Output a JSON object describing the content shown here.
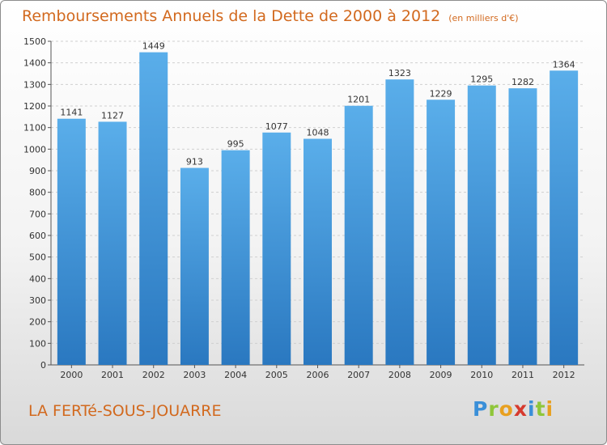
{
  "title": "Remboursements Annuels de la Dette de 2000 à 2012",
  "unit": "(en milliers d'€)",
  "place": "LA FERTé-SOUS-JOUARRE",
  "logo": {
    "letters": [
      {
        "char": "P",
        "color": "#3a8fd8"
      },
      {
        "char": "r",
        "color": "#8fc63a"
      },
      {
        "char": "o",
        "color": "#e8a020"
      },
      {
        "char": "x",
        "color": "#d63a2e"
      },
      {
        "char": "i",
        "color": "#3a8fd8"
      },
      {
        "char": "t",
        "color": "#8fc63a"
      },
      {
        "char": "i",
        "color": "#e8a020"
      }
    ]
  },
  "chart_data": {
    "type": "bar",
    "categories": [
      "2000",
      "2001",
      "2002",
      "2003",
      "2004",
      "2005",
      "2006",
      "2007",
      "2008",
      "2009",
      "2010",
      "2011",
      "2012"
    ],
    "values": [
      1141,
      1127,
      1449,
      913,
      995,
      1077,
      1048,
      1201,
      1323,
      1229,
      1295,
      1282,
      1364
    ],
    "ylim": [
      0,
      1500
    ],
    "yticks": [
      0,
      100,
      200,
      300,
      400,
      500,
      600,
      700,
      800,
      900,
      1000,
      1100,
      1200,
      1300,
      1400,
      1500
    ],
    "grid": true,
    "bar_color": "#4a9fe0"
  }
}
